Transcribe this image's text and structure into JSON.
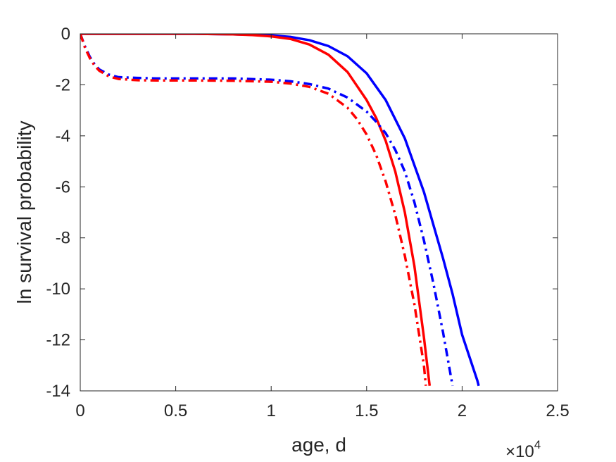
{
  "chart_data": {
    "type": "line",
    "title": "",
    "xlabel": "age, d",
    "ylabel": "ln survival probability",
    "x_exponent": {
      "base": "×10",
      "power": "4"
    },
    "xlim": [
      0,
      25000
    ],
    "ylim": [
      -14,
      0
    ],
    "xticks": [
      0,
      5000,
      10000,
      15000,
      20000,
      25000
    ],
    "xtick_labels": [
      "0",
      "0.5",
      "1",
      "1.5",
      "2",
      "2.5"
    ],
    "yticks": [
      0,
      -2,
      -4,
      -6,
      -8,
      -10,
      -12,
      -14
    ],
    "ytick_labels": [
      "0",
      "-2",
      "-4",
      "-6",
      "-8",
      "-10",
      "-12",
      "-14"
    ],
    "grid": false,
    "legend": "none",
    "series": [
      {
        "color": "#0000ff",
        "line_style": "solid",
        "x": [
          0,
          2000,
          4000,
          6000,
          8000,
          10000,
          11000,
          12000,
          13000,
          14000,
          15000,
          16000,
          17000,
          18000,
          18500,
          19000,
          19500,
          20000,
          20400,
          20800,
          20870
        ],
        "y": [
          0,
          0,
          0,
          0,
          -0.02,
          -0.06,
          -0.12,
          -0.25,
          -0.48,
          -0.88,
          -1.55,
          -2.6,
          -4.1,
          -6.2,
          -7.5,
          -8.8,
          -10.2,
          -11.8,
          -12.7,
          -13.6,
          -13.8
        ]
      },
      {
        "color": "#ff0000",
        "line_style": "solid",
        "x": [
          0,
          2000,
          4000,
          6000,
          8000,
          9000,
          10000,
          11000,
          12000,
          13000,
          14000,
          15000,
          15500,
          16000,
          16500,
          17000,
          17500,
          18000,
          18300
        ],
        "y": [
          0,
          0,
          0,
          0,
          -0.02,
          -0.05,
          -0.1,
          -0.2,
          -0.42,
          -0.82,
          -1.5,
          -2.6,
          -3.3,
          -4.2,
          -5.4,
          -7.0,
          -9.1,
          -11.9,
          -13.8
        ]
      },
      {
        "color": "#0000ff",
        "line_style": "dashdot",
        "x": [
          0,
          250,
          500,
          750,
          1000,
          1500,
          2000,
          3000,
          4000,
          6000,
          8000,
          10000,
          11000,
          12000,
          13000,
          14000,
          15000,
          15500,
          16000,
          16500,
          17000,
          17500,
          18000,
          18500,
          19000,
          19500
        ],
        "y": [
          0,
          -0.5,
          -0.9,
          -1.2,
          -1.4,
          -1.6,
          -1.7,
          -1.73,
          -1.75,
          -1.75,
          -1.75,
          -1.8,
          -1.86,
          -1.97,
          -2.15,
          -2.5,
          -3.05,
          -3.45,
          -3.9,
          -4.55,
          -5.4,
          -6.6,
          -8.1,
          -9.8,
          -11.7,
          -13.8
        ]
      },
      {
        "color": "#ff0000",
        "line_style": "dashdot",
        "x": [
          0,
          250,
          500,
          750,
          1000,
          1500,
          2000,
          3000,
          4000,
          6000,
          8000,
          10000,
          11000,
          12000,
          13000,
          14000,
          14500,
          15000,
          15500,
          16000,
          16500,
          17000,
          17500,
          18000,
          18100
        ],
        "y": [
          0,
          -0.55,
          -0.95,
          -1.25,
          -1.45,
          -1.67,
          -1.77,
          -1.82,
          -1.83,
          -1.83,
          -1.84,
          -1.88,
          -1.95,
          -2.08,
          -2.35,
          -2.9,
          -3.35,
          -3.95,
          -4.75,
          -5.8,
          -7.1,
          -8.7,
          -10.6,
          -13.0,
          -13.8
        ]
      }
    ]
  }
}
